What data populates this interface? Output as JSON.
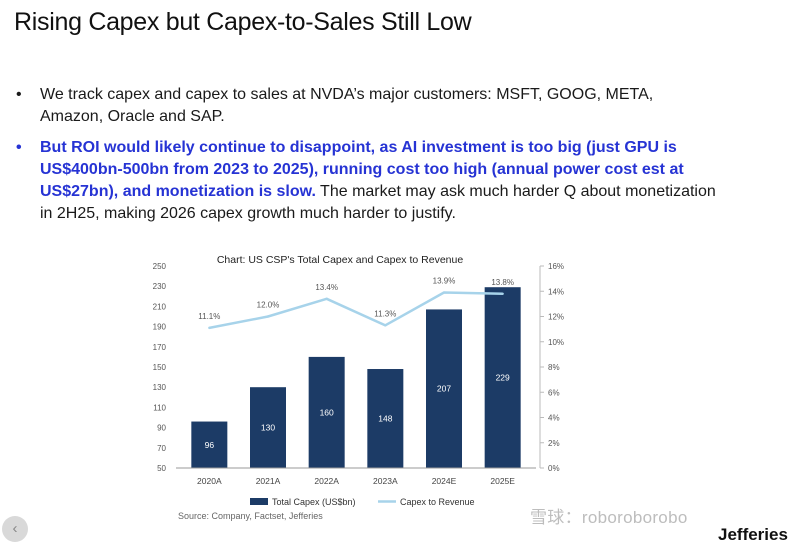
{
  "slide": {
    "title": "Rising Capex but Capex-to-Sales Still Low",
    "bullets": [
      {
        "marker": "•",
        "text": "We track capex and capex to sales at NVDA’s major customers: MSFT, GOOG, META, Amazon, Oracle and SAP."
      },
      {
        "marker": "•",
        "highlight_text": "But ROI would likely continue to disappoint, as AI investment is too big (just GPU is US$400bn-500bn from 2023 to 2025), running cost too high (annual power cost est at US$27bn), and monetization is slow.",
        "text": " The market may ask much harder Q about monetization in 2H25, making 2026 capex growth much harder to justify."
      }
    ],
    "source": "Source: Company, Factset, Jefferies",
    "watermark": "雪球：roboroborobo",
    "logo": "Jefferies",
    "nav_prev_icon": "‹",
    "colors": {
      "highlight": "#2633d4",
      "bar": "#1c3b66",
      "line": "#a7d3ea"
    }
  },
  "chart_data": {
    "type": "bar",
    "title": "Chart: US CSP's Total Capex and Capex to Revenue",
    "categories": [
      "2020A",
      "2021A",
      "2022A",
      "2023A",
      "2024E",
      "2025E"
    ],
    "series": [
      {
        "name": "Total Capex (US$bn)",
        "type": "bar",
        "axis": "left",
        "values": [
          96,
          130,
          160,
          148,
          207,
          229
        ],
        "labels": [
          "96",
          "130",
          "160",
          "148",
          "207",
          "229"
        ]
      },
      {
        "name": "Capex to Revenue",
        "type": "line",
        "axis": "right",
        "values": [
          11.1,
          12.0,
          13.4,
          11.3,
          13.9,
          13.8
        ],
        "labels": [
          "11.1%",
          "12.0%",
          "13.4%",
          "11.3%",
          "13.9%",
          "13.8%"
        ]
      }
    ],
    "y_left": {
      "ticks": [
        "250",
        "230",
        "210",
        "190",
        "170",
        "150",
        "130",
        "110",
        "90",
        "70",
        "50"
      ],
      "min": 50,
      "max": 250
    },
    "y_right": {
      "ticks": [
        "16%",
        "14%",
        "12%",
        "10%",
        "8%",
        "6%",
        "4%",
        "2%",
        "0%"
      ],
      "min": 0,
      "max": 16
    },
    "legend_position": "bottom",
    "grid": false
  }
}
